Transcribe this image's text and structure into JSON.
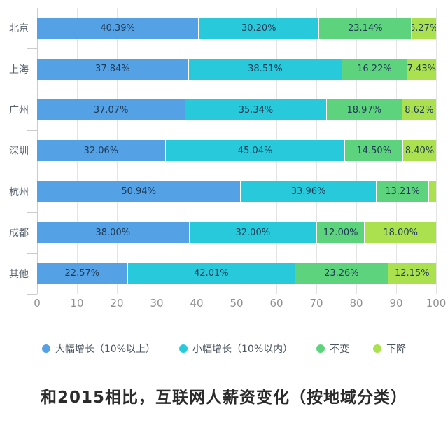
{
  "chart_data": {
    "type": "bar",
    "orientation": "horizontal",
    "stacked": true,
    "title": "和2015相比，互联网人薪资变化（按地域分类）",
    "categories": [
      "北京",
      "上海",
      "广州",
      "深圳",
      "杭州",
      "成都",
      "其他"
    ],
    "series": [
      {
        "name": "大幅增长（10%以上）",
        "color": "#55a1e6",
        "values": [
          40.39,
          37.84,
          37.07,
          32.06,
          50.94,
          38.0,
          22.57
        ]
      },
      {
        "name": "小幅增长（10%以内）",
        "color": "#29c9dc",
        "values": [
          30.2,
          38.51,
          35.34,
          45.04,
          33.96,
          32.0,
          42.01
        ]
      },
      {
        "name": "不变",
        "color": "#5ed37e",
        "values": [
          23.14,
          16.22,
          18.97,
          14.5,
          13.21,
          12.0,
          23.26
        ]
      },
      {
        "name": "下降",
        "color": "#abe14f",
        "values": [
          6.27,
          7.43,
          8.62,
          8.4,
          1.89,
          18.0,
          12.15
        ]
      }
    ],
    "segment_labels": [
      [
        "40.39%",
        "30.20%",
        "23.14%",
        "6.27%"
      ],
      [
        "37.84%",
        "38.51%",
        "16.22%",
        "7.43%"
      ],
      [
        "37.07%",
        "35.34%",
        "18.97%",
        "8.62%"
      ],
      [
        "32.06%",
        "45.04%",
        "14.50%",
        "8.40%"
      ],
      [
        "50.94%",
        "33.96%",
        "13.21%",
        ""
      ],
      [
        "38.00%",
        "32.00%",
        "12.00%",
        "18.00%"
      ],
      [
        "22.57%",
        "42.01%",
        "23.26%",
        "12.15%"
      ]
    ],
    "xticks": [
      0,
      10,
      20,
      30,
      40,
      50,
      60,
      70,
      80,
      90,
      100
    ],
    "xlim": [
      0,
      100
    ],
    "grid": true,
    "legend_position": "bottom"
  }
}
